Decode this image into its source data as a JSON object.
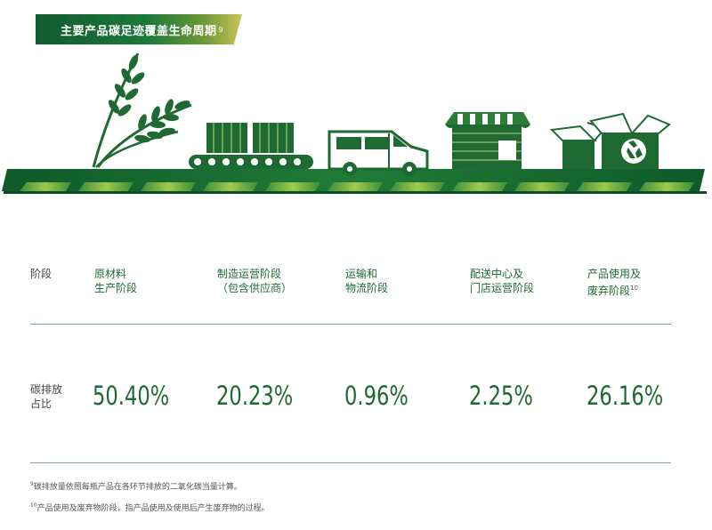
{
  "banner": {
    "title": "主要产品碳足迹覆盖生命周期",
    "note": "9"
  },
  "row_labels": {
    "stage": "阶段",
    "emission_line1": "碳排放",
    "emission_line2": "占比"
  },
  "columns": [
    {
      "line1": "原材料",
      "line2": "生产阶段",
      "note": "",
      "value": "50.40%"
    },
    {
      "line1": "制造运营阶段",
      "line2": "（包含供应商）",
      "note": "",
      "value": "20.23%"
    },
    {
      "line1": "运输和",
      "line2": "物流阶段",
      "note": "",
      "value": "0.96%"
    },
    {
      "line1": "配送中心及",
      "line2": "门店运营阶段",
      "note": "",
      "value": "2.25%"
    },
    {
      "line1": "产品使用及",
      "line2": "废弃阶段",
      "note": "10",
      "value": "26.16%"
    }
  ],
  "footnotes": [
    {
      "mark": "9",
      "text": "碳排放量依照每瓶产品在各环节排放的二氧化碳当量计算。"
    },
    {
      "mark": "10",
      "text": "产品使用及废弃物阶段，指产品使用及使用后产生废弃物的过程。"
    }
  ],
  "colors": {
    "primary_green": "#1e6a32",
    "light_green": "#8bc34a",
    "gold": "#c9c25c"
  },
  "icons": [
    "wheat-icon",
    "conveyor-belt-icon",
    "delivery-van-icon",
    "store-icon",
    "recycle-boxes-icon"
  ]
}
